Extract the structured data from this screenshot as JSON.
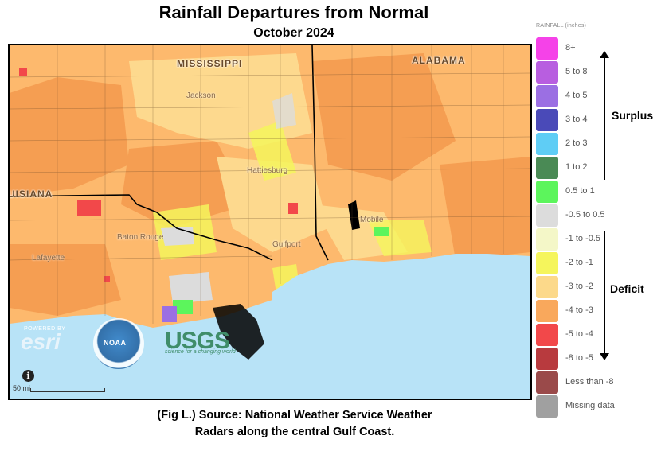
{
  "title": "Rainfall Departures from Normal",
  "subtitle": "October 2024",
  "caption_line1": "(Fig L.) Source: National Weather Service Weather",
  "caption_line2": "Radars along the central Gulf Coast.",
  "legend": {
    "title": "RAINFALL (inches)",
    "items": [
      {
        "label": "8+",
        "color": "#f542e8"
      },
      {
        "label": "5 to 8",
        "color": "#b85ee0"
      },
      {
        "label": "4 to 5",
        "color": "#9b6fe3"
      },
      {
        "label": "3 to 4",
        "color": "#4a4ab8"
      },
      {
        "label": "2 to 3",
        "color": "#5fcdf5"
      },
      {
        "label": "1 to 2",
        "color": "#4a8a55"
      },
      {
        "label": "0.5 to 1",
        "color": "#5cf55c"
      },
      {
        "label": "-0.5 to 0.5",
        "color": "#dcdcdc"
      },
      {
        "label": "-1 to -0.5",
        "color": "#f4f7c8"
      },
      {
        "label": "-2 to -1",
        "color": "#f5f55c"
      },
      {
        "label": "-3 to -2",
        "color": "#fcd98a"
      },
      {
        "label": "-4 to -3",
        "color": "#f9a85c"
      },
      {
        "label": "-5 to -4",
        "color": "#f2484a"
      },
      {
        "label": "-8 to -5",
        "color": "#b83a3e"
      },
      {
        "label": "Less than -8",
        "color": "#9a4a4a"
      },
      {
        "label": "Missing data",
        "color": "#a0a0a0"
      }
    ]
  },
  "surplus_label": "Surplus",
  "deficit_label": "Deficit",
  "map": {
    "state_labels": [
      "MISSISSIPPI",
      "ALABAMA",
      "UISIANA"
    ],
    "city_labels": [
      "Jackson",
      "Hattiesburg",
      "Mobile",
      "Baton Rouge",
      "Lafayette",
      "Gulfport"
    ],
    "scale_label": "50 mi",
    "info_symbol": "i",
    "esri_powered": "POWERED BY",
    "esri_logo": "esri",
    "noaa_logo": "NOAA",
    "usgs_logo": "USGS",
    "usgs_tagline": "science for a changing world"
  },
  "colors": {
    "water": "#b8e3f7",
    "land_base": "#fdb96d",
    "land_dark": "#f59e52",
    "land_light": "#fdd98e",
    "border": "#000000"
  }
}
